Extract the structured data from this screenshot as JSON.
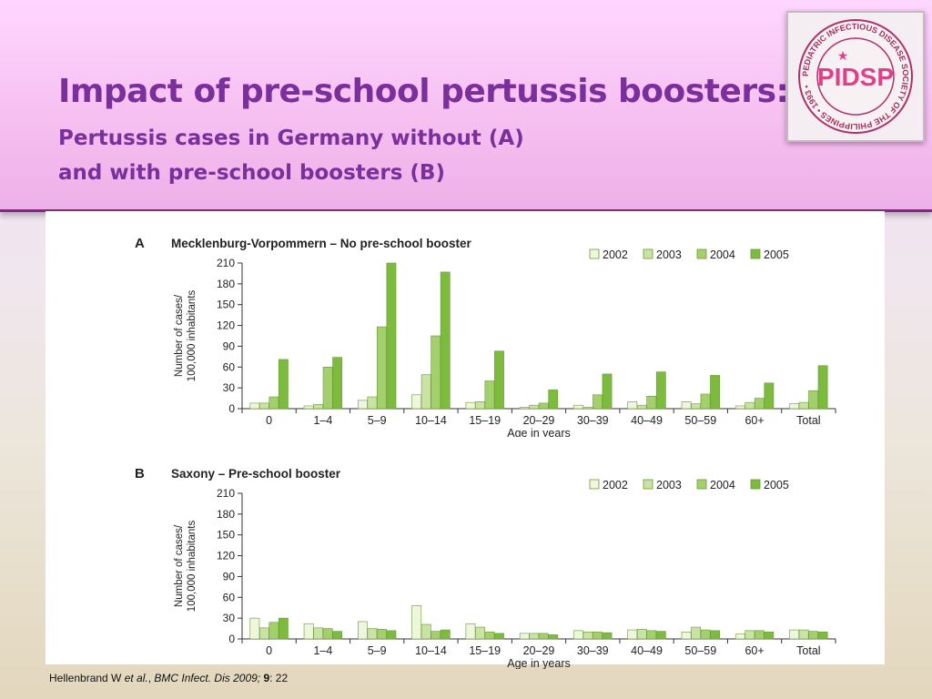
{
  "slide": {
    "title": "Impact of pre-school pertussis boosters:",
    "subtitle_line1": "Pertussis cases in Germany without (A)",
    "subtitle_line2": "and with pre-school boosters (B)",
    "logo_text": "PIDSP",
    "logo_ring_text": "PEDIATRIC INFECTIOUS DISEASE SOCIETY OF THE PHILIPPINES • 1993 •",
    "citation": {
      "author": "Hellenbrand W ",
      "etal": "et al.",
      "sep": ", ",
      "journal": "BMC Infect. Dis 2009;",
      "volume": " 9",
      "pages": ": 22"
    }
  },
  "colors": {
    "2002": "#eef6dd",
    "2003": "#c9e3a4",
    "2004": "#a3cf6d",
    "2005": "#7cbb3e",
    "bar_stroke": "#6a9a35",
    "title": "#7a2f9c"
  },
  "chart_data": [
    {
      "type": "bar",
      "panel": "A",
      "title": "Mecklenburg-Vorpommern – No pre-school booster",
      "xlabel": "Age in years",
      "ylabel_line1": "Number of cases/",
      "ylabel_line2": "100,000 inhabitants",
      "ylim": [
        0,
        210
      ],
      "yticks": [
        0,
        30,
        60,
        90,
        120,
        150,
        180,
        210
      ],
      "legend_position": "top-right",
      "categories": [
        "0",
        "1–4",
        "5–9",
        "10–14",
        "15–19",
        "20–29",
        "30–39",
        "40–49",
        "50–59",
        "60+",
        "Total"
      ],
      "series": [
        {
          "name": "2002",
          "values": [
            8,
            4,
            12,
            20,
            9,
            2,
            5,
            10,
            10,
            4,
            7
          ]
        },
        {
          "name": "2003",
          "values": [
            8,
            6,
            17,
            49,
            10,
            5,
            2,
            5,
            7,
            9,
            9
          ]
        },
        {
          "name": "2004",
          "values": [
            17,
            60,
            118,
            105,
            40,
            8,
            20,
            18,
            21,
            15,
            26
          ]
        },
        {
          "name": "2005",
          "values": [
            71,
            74,
            212,
            197,
            83,
            27,
            50,
            53,
            48,
            37,
            62
          ]
        }
      ]
    },
    {
      "type": "bar",
      "panel": "B",
      "title": "Saxony – Pre-school booster",
      "xlabel": "Age in years",
      "ylabel_line1": "Number of cases/",
      "ylabel_line2": "100,000 inhabitants",
      "ylim": [
        0,
        210
      ],
      "yticks": [
        0,
        30,
        60,
        90,
        120,
        150,
        180,
        210
      ],
      "legend_position": "top-right",
      "categories": [
        "0",
        "1–4",
        "5–9",
        "10–14",
        "15–19",
        "20–29",
        "30–39",
        "40–49",
        "50–59",
        "60+",
        "Total"
      ],
      "series": [
        {
          "name": "2002",
          "values": [
            30,
            22,
            25,
            48,
            22,
            8,
            12,
            13,
            10,
            7,
            13
          ]
        },
        {
          "name": "2003",
          "values": [
            16,
            16,
            15,
            21,
            17,
            8,
            10,
            14,
            17,
            12,
            13
          ]
        },
        {
          "name": "2004",
          "values": [
            24,
            15,
            14,
            11,
            10,
            8,
            10,
            12,
            13,
            12,
            11
          ]
        },
        {
          "name": "2005",
          "values": [
            30,
            11,
            12,
            13,
            8,
            6,
            9,
            11,
            12,
            10,
            10
          ]
        }
      ]
    }
  ]
}
